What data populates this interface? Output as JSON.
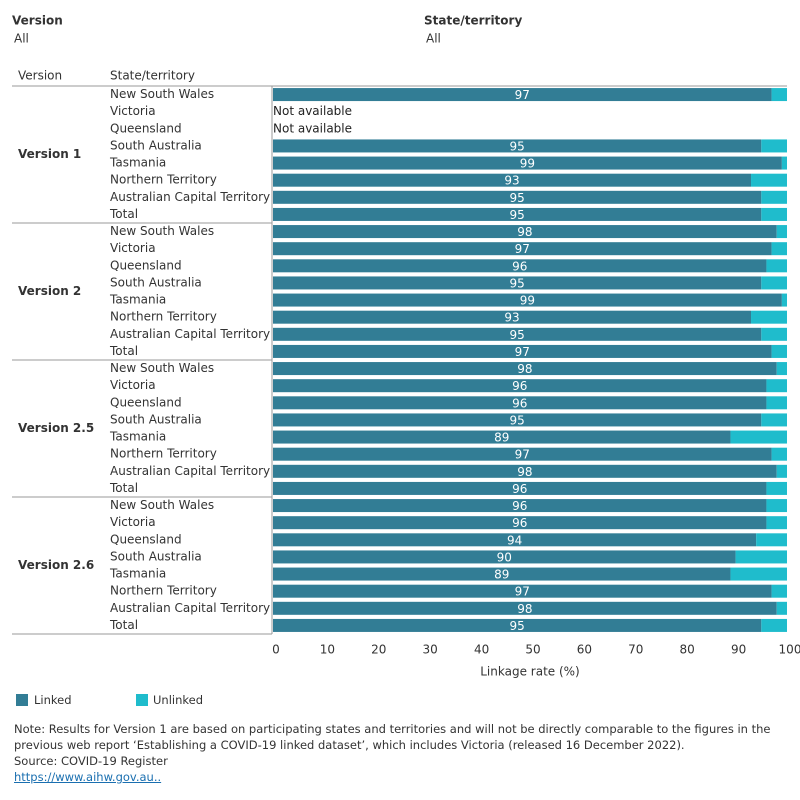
{
  "filters": [
    {
      "label": "Version",
      "value": "All"
    },
    {
      "label": "State/territory",
      "value": "All"
    }
  ],
  "row_headers": [
    "Version",
    "State/territory"
  ],
  "chart_data": {
    "type": "stacked-bar",
    "x_label": "Linkage rate (%)",
    "xlim": [
      0,
      100
    ],
    "xticks": [
      0,
      10,
      20,
      30,
      40,
      50,
      60,
      70,
      80,
      90,
      100
    ],
    "series": [
      {
        "name": "Linked",
        "color": "#327d95"
      },
      {
        "name": "Unlinked",
        "color": "#1fbccc"
      }
    ],
    "groups": [
      {
        "label": "Version 1",
        "categories": [
          "New South Wales",
          "Victoria",
          "Queensland",
          "South Australia",
          "Tasmania",
          "Northern Territory",
          "Australian Capital Territory",
          "Total"
        ],
        "series": [
          {
            "values": [
              97,
              null,
              null,
              95,
              99,
              93,
              95,
              95
            ]
          },
          {
            "values": [
              3,
              null,
              null,
              5,
              1,
              7,
              5,
              5
            ]
          }
        ],
        "value_labels": [
          null,
          "Not available",
          "Not available",
          null,
          null,
          null,
          null,
          null
        ]
      },
      {
        "label": "Version 2",
        "categories": [
          "New South Wales",
          "Victoria",
          "Queensland",
          "South Australia",
          "Tasmania",
          "Northern Territory",
          "Australian Capital Territory",
          "Total"
        ],
        "series": [
          {
            "values": [
              98,
              97,
              96,
              95,
              99,
              93,
              95,
              97
            ]
          },
          {
            "values": [
              2,
              3,
              4,
              5,
              1,
              7,
              5,
              3
            ]
          }
        ]
      },
      {
        "label": "Version 2.5",
        "categories": [
          "New South Wales",
          "Victoria",
          "Queensland",
          "South Australia",
          "Tasmania",
          "Northern Territory",
          "Australian Capital Territory",
          "Total"
        ],
        "series": [
          {
            "values": [
              98,
              96,
              96,
              95,
              89,
              97,
              98,
              96
            ]
          },
          {
            "values": [
              2,
              4,
              4,
              5,
              11,
              3,
              2,
              4
            ]
          }
        ]
      },
      {
        "label": "Version 2.6",
        "categories": [
          "New South Wales",
          "Victoria",
          "Queensland",
          "South Australia",
          "Tasmania",
          "Northern Territory",
          "Australian Capital Territory",
          "Total"
        ],
        "series": [
          {
            "values": [
              96,
              96,
              94,
              90,
              89,
              97,
              98,
              95
            ]
          },
          {
            "values": [
              4,
              4,
              6,
              10,
              11,
              3,
              2,
              5
            ]
          }
        ]
      }
    ]
  },
  "footer": {
    "note": "Note: Results for Version 1 are based on participating states and territories and will not be directly comparable to the figures in the previous web report ‘Establishing a COVID-19 linked dataset’, which includes Victoria (released 16 December 2022).",
    "source": "Source: COVID-19 Register",
    "link": "https://www.aihw.gov.au.."
  }
}
